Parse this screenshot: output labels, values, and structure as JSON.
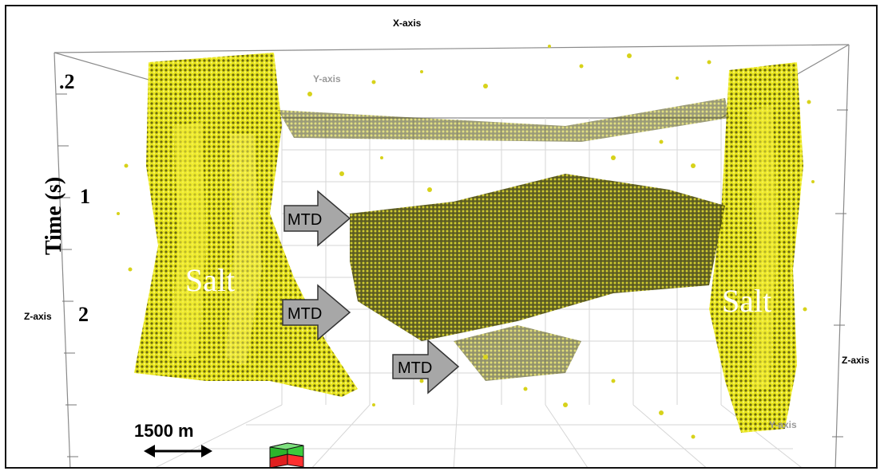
{
  "axes": {
    "x_axis": "X-axis",
    "y_axis_top": "Y-axis",
    "y_axis_bottom": "Y-axis",
    "z_axis_left": "Z-axis",
    "z_axis_right": "Z-axis"
  },
  "time_axis": {
    "label": "Time (s)",
    "ticks": [
      ".2",
      "1",
      "2"
    ]
  },
  "annotations": {
    "salt_left": "Salt",
    "salt_right": "Salt",
    "mtd": [
      "MTD",
      "MTD",
      "MTD"
    ]
  },
  "scale_bar": {
    "label": "1500 m"
  },
  "colors": {
    "body_yellow": "#e6e21a",
    "body_dark": "#5b5a0c",
    "arrow_fill": "#a7a7a7",
    "grid": "#d4d4d4"
  },
  "icons": [
    "orientation-cube-icon",
    "double-arrow-icon"
  ]
}
